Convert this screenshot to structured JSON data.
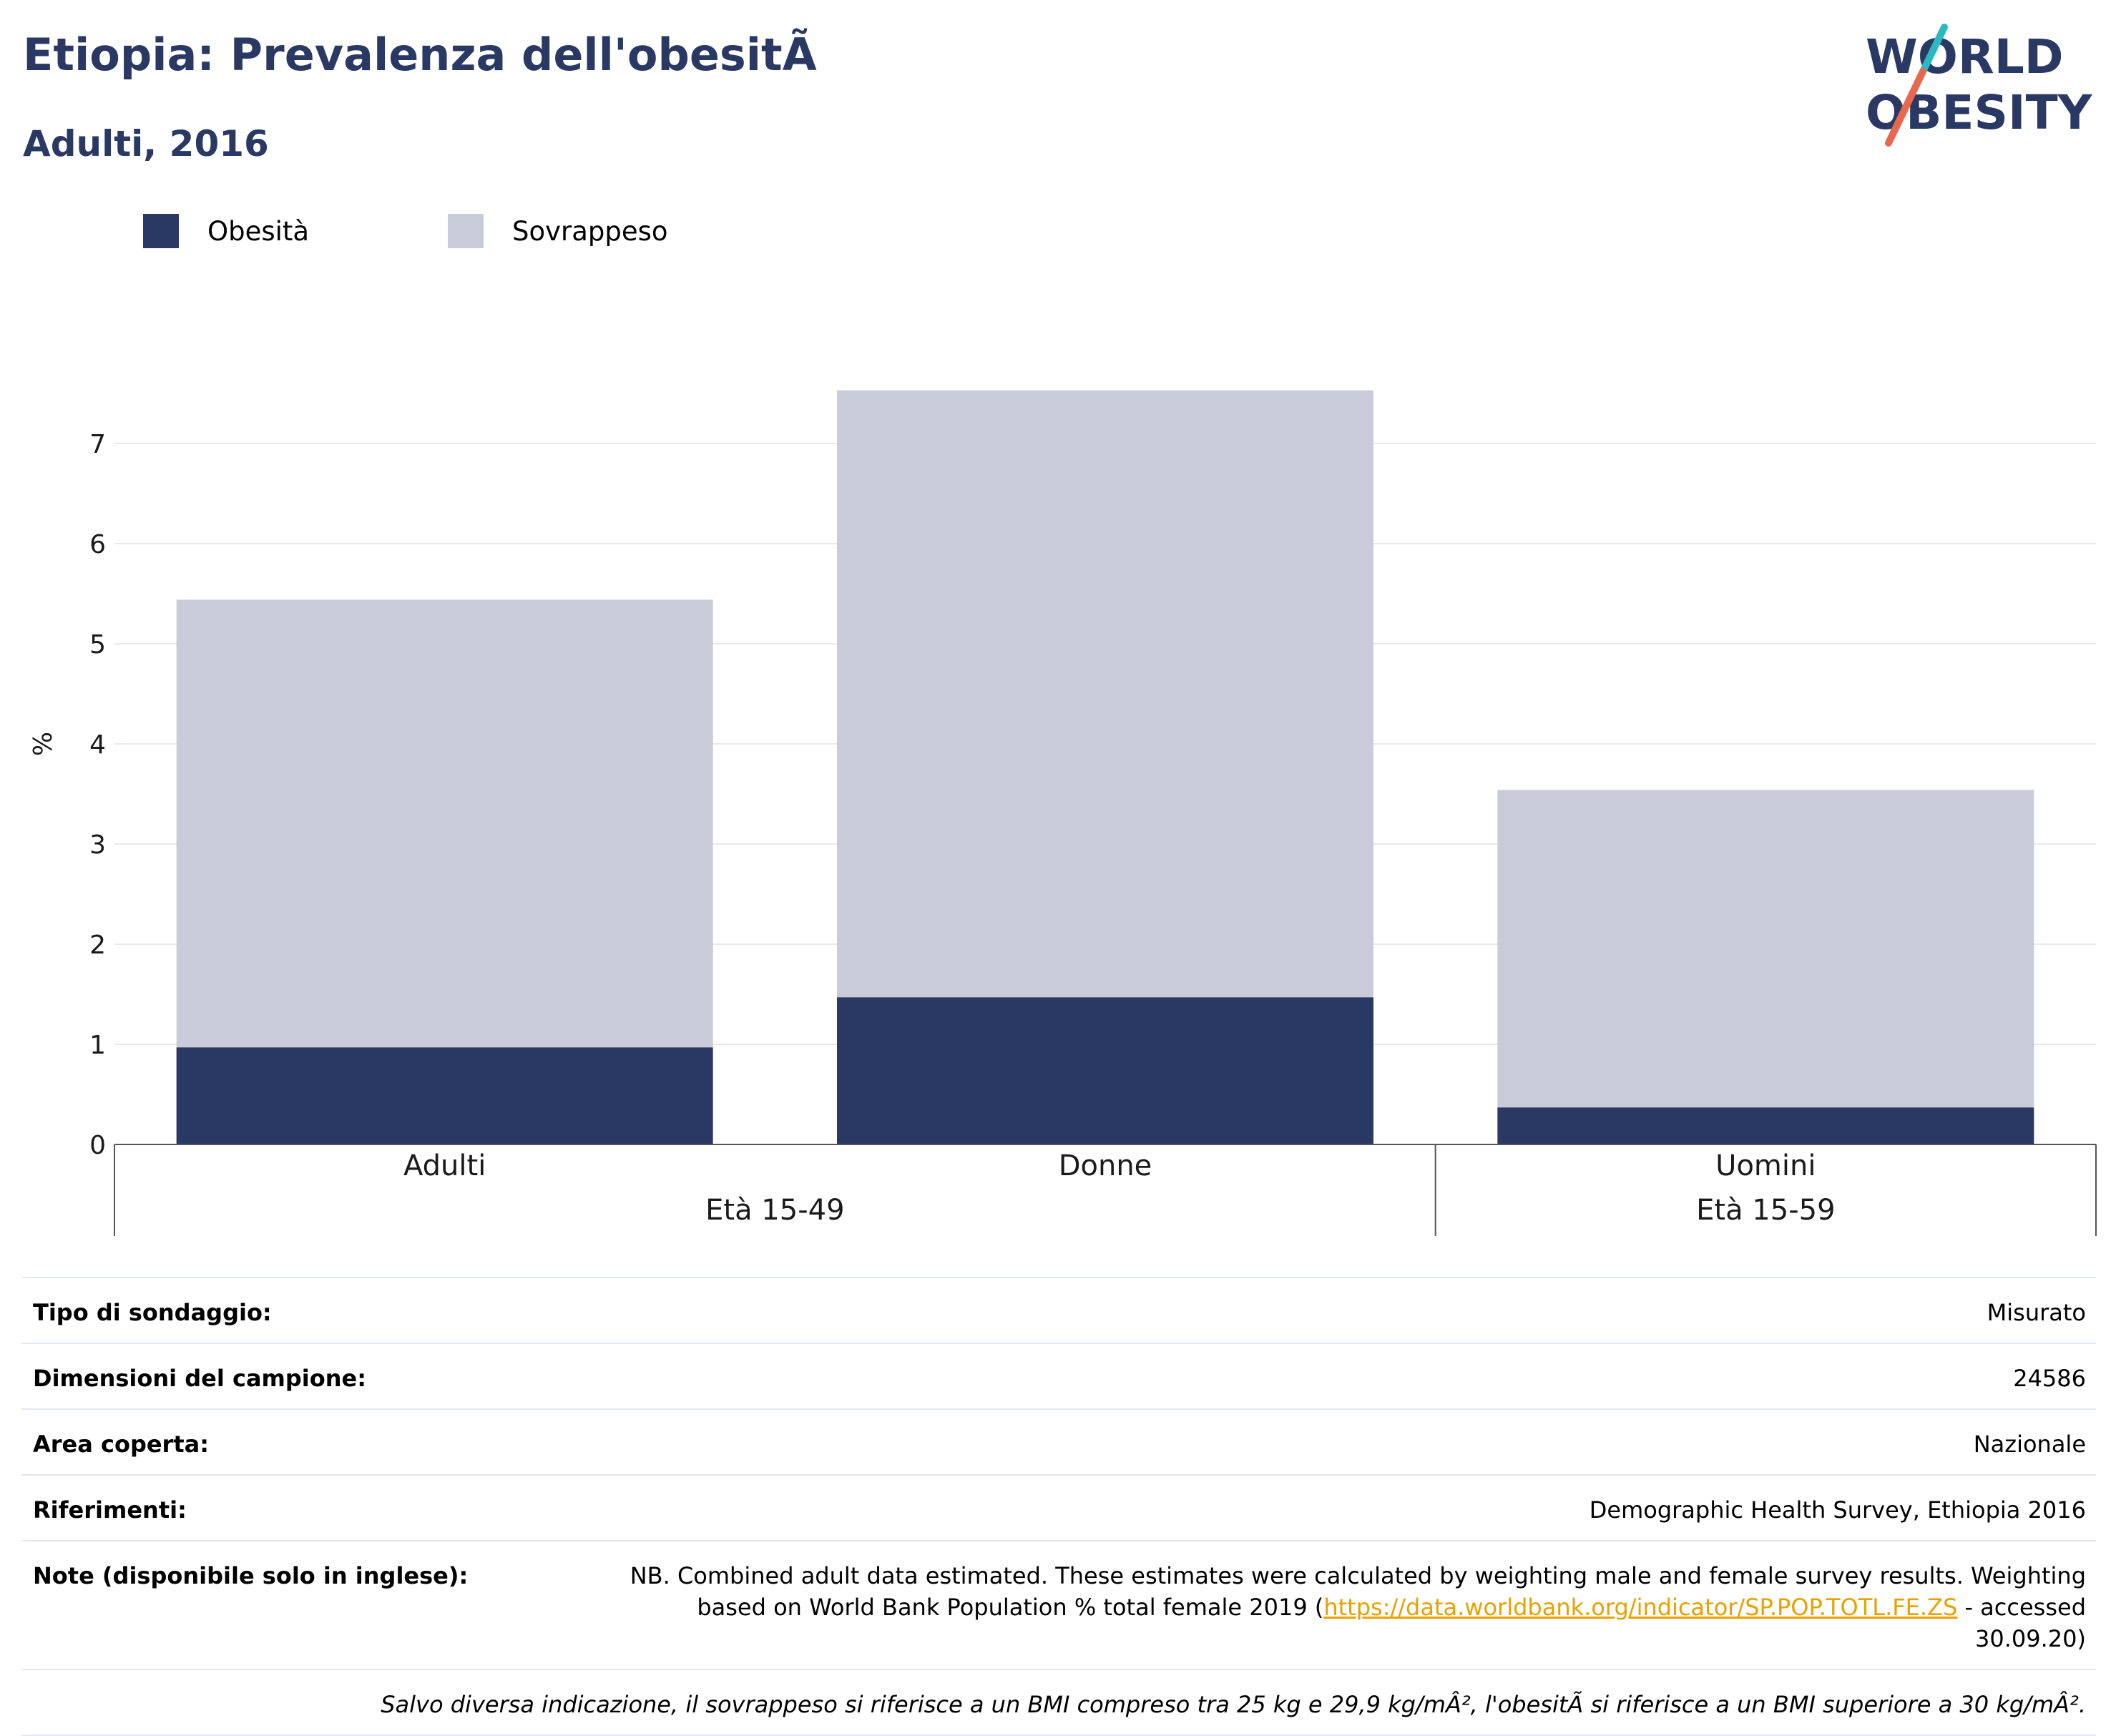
{
  "header": {
    "title": "Etiopia: Prevalenza dell'obesitÃ",
    "subtitle": "Adulti, 2016",
    "logo_line1": "WORLD",
    "logo_line2": "OBESITY"
  },
  "legend": [
    {
      "label": "Obesità",
      "color": "#2a3864"
    },
    {
      "label": "Sovrappeso",
      "color": "#c9ccd8"
    }
  ],
  "chart_data": {
    "type": "bar",
    "stacked": true,
    "categories": [
      "Adulti",
      "Donne",
      "Uomini"
    ],
    "groups": [
      {
        "label": "Età 15-49",
        "categories": [
          "Adulti",
          "Donne"
        ]
      },
      {
        "label": "Età 15-59",
        "categories": [
          "Uomini"
        ]
      }
    ],
    "series": [
      {
        "name": "Obesità",
        "color": "#2a3864",
        "values": [
          0.97,
          1.47,
          0.37
        ]
      },
      {
        "name": "Sovrappeso",
        "color": "#c9ccd8",
        "values": [
          4.47,
          6.06,
          3.17
        ]
      }
    ],
    "ylabel": "%",
    "ylim": [
      0,
      8
    ],
    "yticks": [
      0,
      1,
      2,
      3,
      4,
      5,
      6,
      7
    ],
    "grid": true,
    "legend_position": "top-left"
  },
  "info": [
    {
      "label": "Tipo di sondaggio:",
      "value": "Misurato"
    },
    {
      "label": "Dimensioni del campione:",
      "value": "24586"
    },
    {
      "label": "Area coperta:",
      "value": "Nazionale"
    },
    {
      "label": "Riferimenti:",
      "value": "Demographic Health Survey, Ethiopia 2016"
    }
  ],
  "note": {
    "label": "Note (disponibile solo in inglese):",
    "text_before": "NB. Combined adult data estimated. These estimates were calculated by weighting male and female survey results. Weighting based on World Bank Population % total female 2019 (",
    "link": "https://data.worldbank.org/indicator/SP.POP.TOTL.FE.ZS",
    "text_after": " - accessed 30.09.20)"
  },
  "footer": "Salvo diversa indicazione, il sovrappeso si riferisce a un BMI compreso tra 25 kg e 29,9 kg/mÂ², l'obesitÃ  si riferisce a un BMI superiore a 30 kg/mÂ²."
}
